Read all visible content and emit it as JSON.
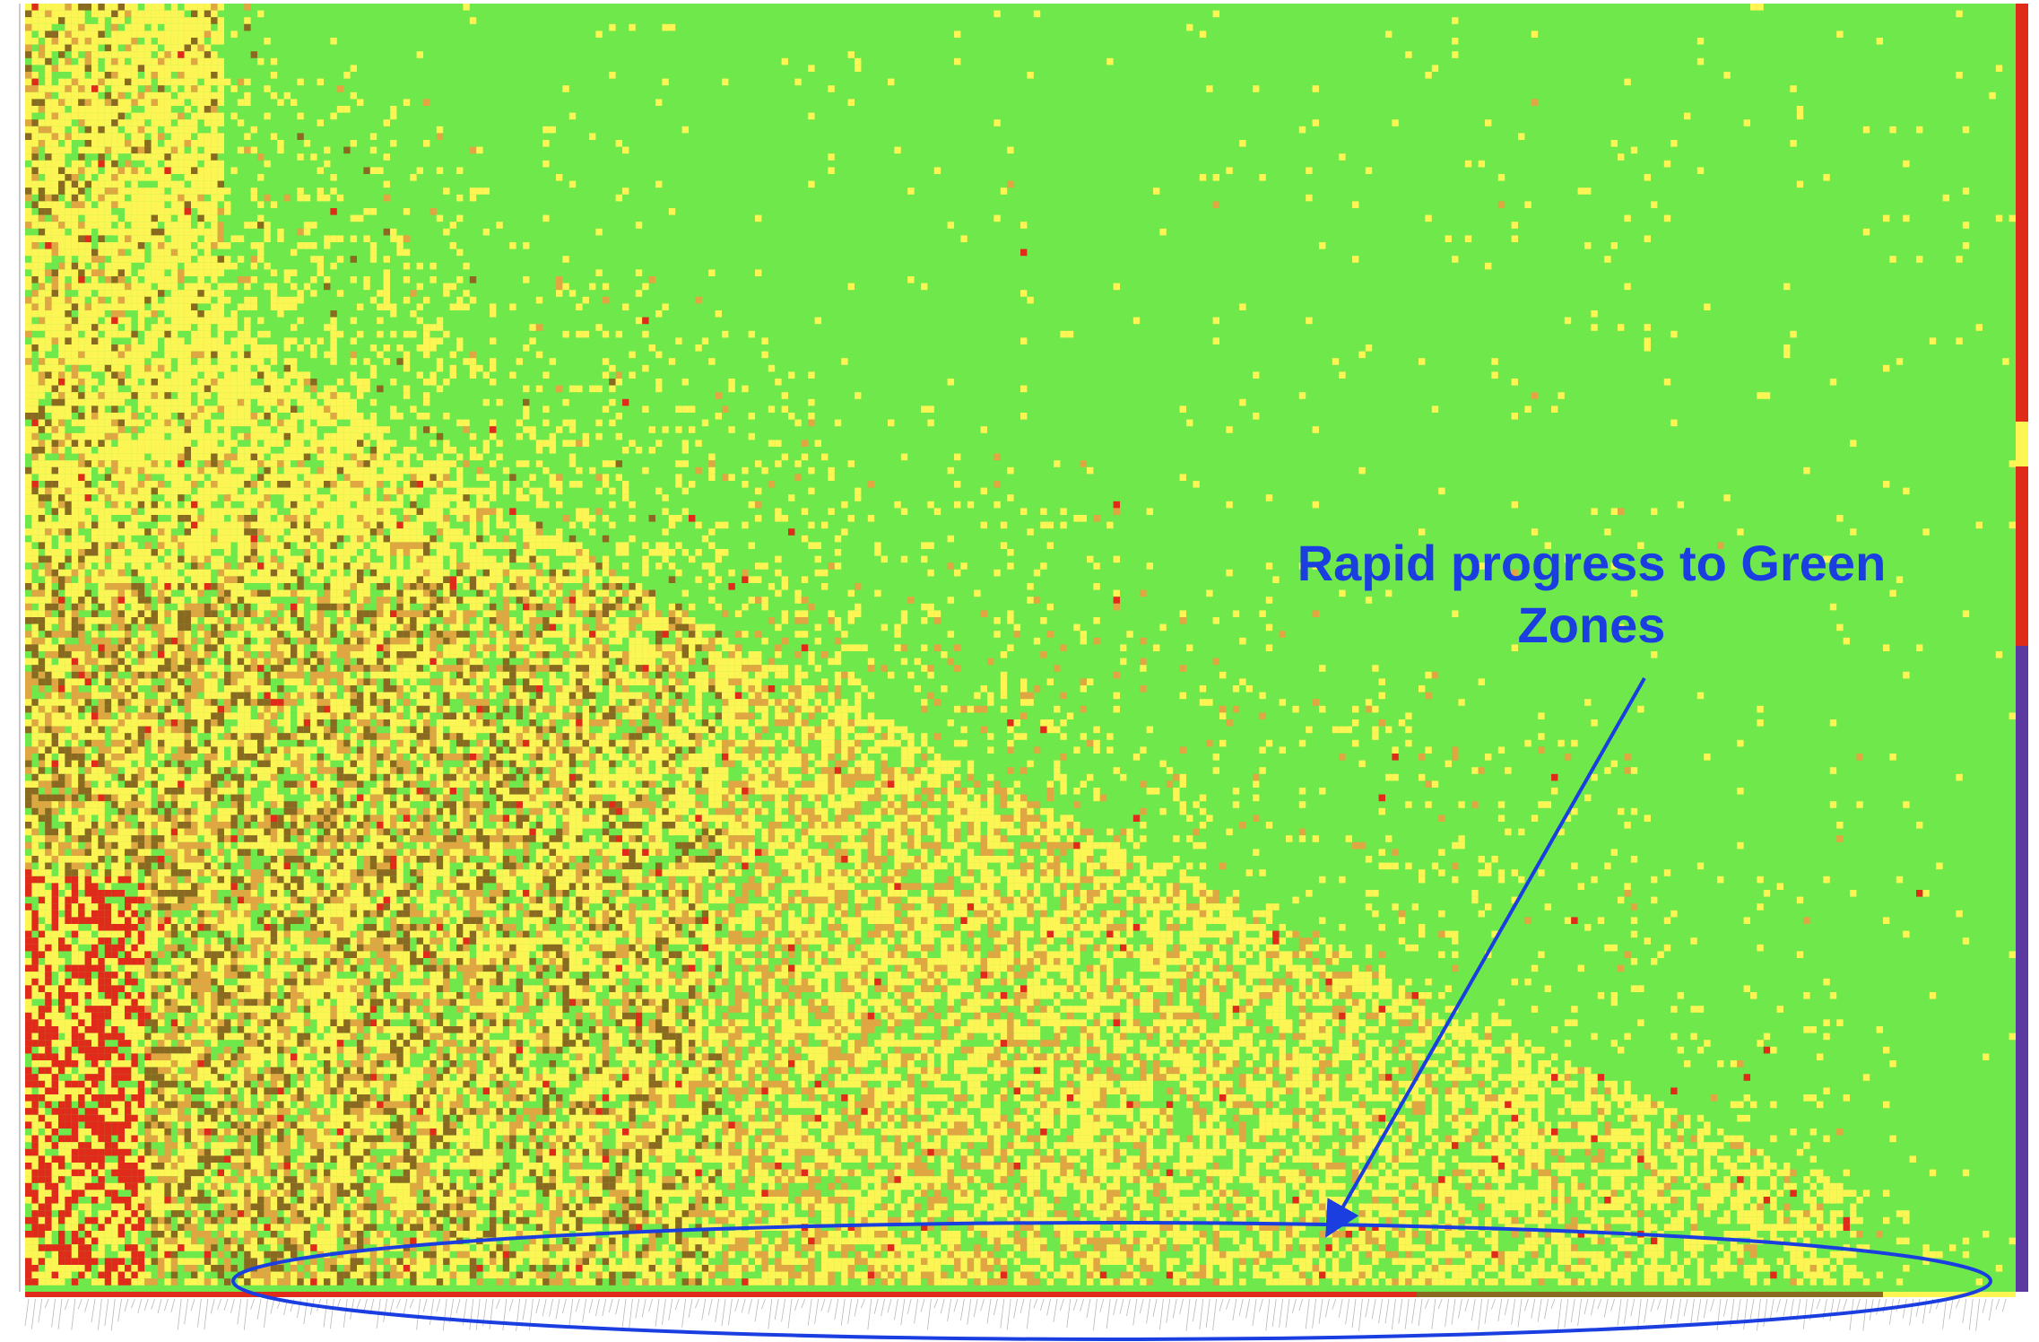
{
  "chart_data": {
    "type": "heatmap",
    "title": "",
    "xlabel": "",
    "ylabel": "",
    "grid": false,
    "legend": "none",
    "color_scale": {
      "green": "#6ee84a",
      "yellow": "#fcf554",
      "orange": "#e0a642",
      "dark_olive": "#8a6a20",
      "red": "#e02a1a"
    },
    "patterns": {
      "green_dominant_region": "upper-right",
      "yellow_orange_region": "left and lower portions",
      "red_cells": "concentrated along lower-left edge"
    },
    "annotation": {
      "line1": "Rapid progress to Green",
      "line2": "Zones",
      "color": "#1a3ee0",
      "points_to": "bottom row of heatmap"
    },
    "highlight": {
      "shape": "ellipse",
      "color": "#1a3ee0",
      "encloses": "bottom rows across the full width"
    },
    "side_bar_colors": [
      "#e02a1a",
      "#fcf554",
      "#5a3aa0"
    ],
    "bottom_bar_colors": [
      "#e02a1a",
      "#8a6a20",
      "#fcf554"
    ]
  }
}
